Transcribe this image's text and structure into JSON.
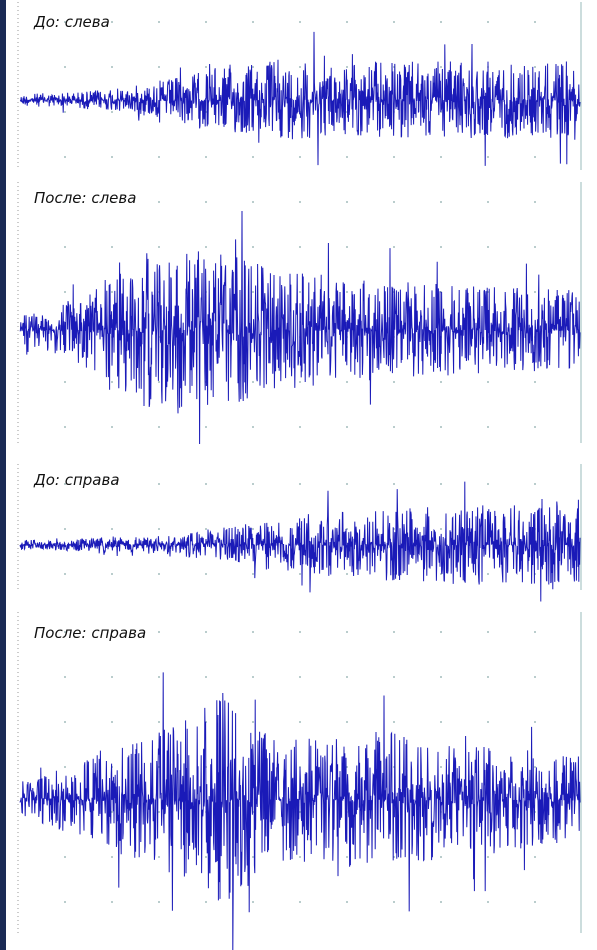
{
  "panels": [
    {
      "label": "До: слева"
    },
    {
      "label": "После: слева"
    },
    {
      "label": "До: справа"
    },
    {
      "label": "После: справа"
    }
  ]
}
